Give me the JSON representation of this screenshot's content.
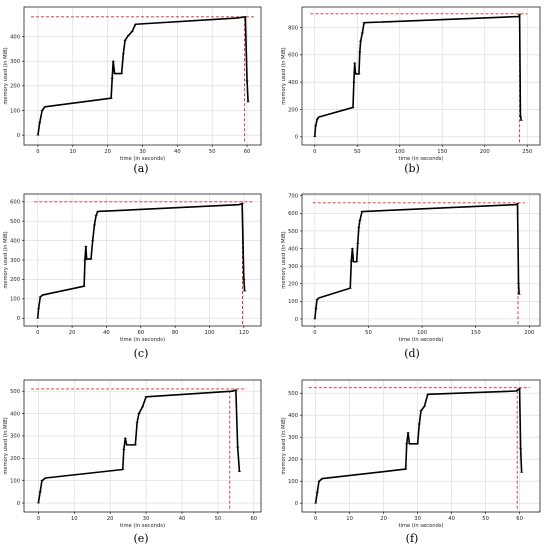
{
  "chart_data": [
    {
      "panel": "(a)",
      "type": "line",
      "xlabel": "time (in seconds)",
      "ylabel": "memory used (in MiB)",
      "xlim": [
        -4,
        64
      ],
      "ylim": [
        -40,
        520
      ],
      "xticks": [
        0,
        10,
        20,
        30,
        40,
        50,
        60
      ],
      "yticks": [
        0,
        100,
        200,
        300,
        400
      ],
      "grid": true,
      "series": [
        {
          "color": "#000000",
          "x": [
            0,
            0.5,
            1.2,
            2,
            21,
            21.3,
            21.6,
            22,
            24,
            24.5,
            25,
            26,
            27,
            28,
            57,
            58.5,
            59.5,
            60,
            60.3
          ],
          "y": [
            0,
            50,
            100,
            115,
            150,
            230,
            300,
            250,
            250,
            330,
            385,
            405,
            420,
            450,
            475,
            478,
            480,
            220,
            135
          ]
        }
      ],
      "reference_lines": [
        {
          "orientation": "horizontal",
          "value": 480,
          "from": -2,
          "to": 62,
          "color": "#d62728",
          "style": "dashed"
        },
        {
          "orientation": "vertical",
          "value": 59.3,
          "from": -25,
          "to": 480,
          "color": "#d62728",
          "style": "dashed"
        }
      ]
    },
    {
      "panel": "(b)",
      "type": "line",
      "xlabel": "time (in seconds)",
      "ylabel": "memory used (in MiB)",
      "xlim": [
        -15,
        265
      ],
      "ylim": [
        -60,
        950
      ],
      "xticks": [
        0,
        50,
        100,
        150,
        200,
        250
      ],
      "yticks": [
        0,
        200,
        400,
        600,
        800
      ],
      "grid": true,
      "series": [
        {
          "color": "#000000",
          "x": [
            0,
            1,
            3,
            5,
            45,
            46,
            47,
            48,
            52,
            53,
            54,
            56,
            58,
            240,
            241,
            242,
            243
          ],
          "y": [
            0,
            80,
            130,
            145,
            215,
            400,
            540,
            460,
            460,
            620,
            700,
            760,
            835,
            880,
            895,
            150,
            120
          ]
        }
      ],
      "reference_lines": [
        {
          "orientation": "horizontal",
          "value": 900,
          "from": -5,
          "to": 250,
          "color": "#d62728",
          "style": "dashed"
        },
        {
          "orientation": "vertical",
          "value": 241,
          "from": -40,
          "to": 900,
          "color": "#d62728",
          "style": "dashed"
        }
      ]
    },
    {
      "panel": "(c)",
      "type": "line",
      "xlabel": "time (in seconds)",
      "ylabel": "memory used (in MiB)",
      "xlim": [
        -8,
        130
      ],
      "ylim": [
        -40,
        640
      ],
      "xticks": [
        0,
        20,
        40,
        60,
        80,
        100,
        120
      ],
      "yticks": [
        0,
        100,
        200,
        300,
        400,
        500,
        600
      ],
      "grid": true,
      "series": [
        {
          "color": "#000000",
          "x": [
            0,
            0.5,
            1.5,
            3,
            27,
            27.5,
            28,
            28.5,
            31,
            32,
            33,
            34,
            35,
            117,
            119,
            120,
            120.5
          ],
          "y": [
            0,
            50,
            110,
            120,
            165,
            300,
            370,
            305,
            305,
            400,
            480,
            530,
            550,
            585,
            590,
            200,
            140
          ]
        }
      ],
      "reference_lines": [
        {
          "orientation": "horizontal",
          "value": 600,
          "from": -2,
          "to": 125,
          "color": "#d62728",
          "style": "dashed"
        },
        {
          "orientation": "vertical",
          "value": 119.2,
          "from": -30,
          "to": 600,
          "color": "#d62728",
          "style": "dashed"
        }
      ]
    },
    {
      "panel": "(d)",
      "type": "line",
      "xlabel": "time (in seconds)",
      "ylabel": "memory used (in MiB)",
      "xlim": [
        -12,
        210
      ],
      "ylim": [
        -40,
        710
      ],
      "xticks": [
        0,
        50,
        100,
        150,
        200
      ],
      "yticks": [
        0,
        100,
        200,
        300,
        400,
        500,
        600,
        700
      ],
      "grid": true,
      "series": [
        {
          "color": "#000000",
          "x": [
            0,
            1,
            2,
            4,
            33,
            34,
            35,
            36,
            39,
            40,
            41,
            42,
            44,
            188,
            189,
            190,
            190.5
          ],
          "y": [
            0,
            60,
            110,
            120,
            175,
            330,
            400,
            325,
            325,
            430,
            520,
            560,
            610,
            650,
            655,
            200,
            140
          ]
        }
      ],
      "reference_lines": [
        {
          "orientation": "horizontal",
          "value": 660,
          "from": -2,
          "to": 196,
          "color": "#d62728",
          "style": "dashed"
        },
        {
          "orientation": "vertical",
          "value": 189.5,
          "from": -30,
          "to": 660,
          "color": "#d62728",
          "style": "dashed"
        }
      ]
    },
    {
      "panel": "(e)",
      "type": "line",
      "xlabel": "time (in seconds)",
      "ylabel": "memory used (in MiB)",
      "xlim": [
        -4,
        62
      ],
      "ylim": [
        -40,
        550
      ],
      "xticks": [
        0,
        10,
        20,
        30,
        40,
        50,
        60
      ],
      "yticks": [
        0,
        100,
        200,
        300,
        400,
        500
      ],
      "grid": true,
      "series": [
        {
          "color": "#000000",
          "x": [
            0,
            0.5,
            1,
            2,
            23.5,
            23.8,
            24.2,
            24.6,
            27,
            27.5,
            28,
            29,
            30,
            54,
            55,
            55.5,
            56
          ],
          "y": [
            0,
            50,
            100,
            112,
            150,
            240,
            290,
            260,
            260,
            360,
            400,
            430,
            475,
            500,
            505,
            250,
            140
          ]
        }
      ],
      "reference_lines": [
        {
          "orientation": "horizontal",
          "value": 510,
          "from": -2,
          "to": 58,
          "color": "#d62728",
          "style": "dashed"
        },
        {
          "orientation": "vertical",
          "value": 53.3,
          "from": -25,
          "to": 510,
          "color": "#d62728",
          "style": "dashed"
        }
      ]
    },
    {
      "panel": "(f)",
      "type": "line",
      "xlabel": "time (in seconds)",
      "ylabel": "memory used (in MiB)",
      "xlim": [
        -4,
        66
      ],
      "ylim": [
        -40,
        560
      ],
      "xticks": [
        0,
        10,
        20,
        30,
        40,
        50,
        60
      ],
      "yticks": [
        0,
        100,
        200,
        300,
        400,
        500
      ],
      "grid": true,
      "series": [
        {
          "color": "#000000",
          "x": [
            0,
            0.5,
            1,
            2,
            26.5,
            26.8,
            27.2,
            27.6,
            30,
            30.5,
            31,
            32,
            33,
            59,
            60,
            60.3,
            60.6
          ],
          "y": [
            0,
            50,
            100,
            112,
            155,
            270,
            320,
            270,
            270,
            360,
            420,
            440,
            495,
            510,
            520,
            250,
            140
          ]
        }
      ],
      "reference_lines": [
        {
          "orientation": "horizontal",
          "value": 525,
          "from": -2,
          "to": 63,
          "color": "#d62728",
          "style": "dashed"
        },
        {
          "orientation": "vertical",
          "value": 59.3,
          "from": -25,
          "to": 525,
          "color": "#d62728",
          "style": "dashed"
        }
      ]
    }
  ]
}
